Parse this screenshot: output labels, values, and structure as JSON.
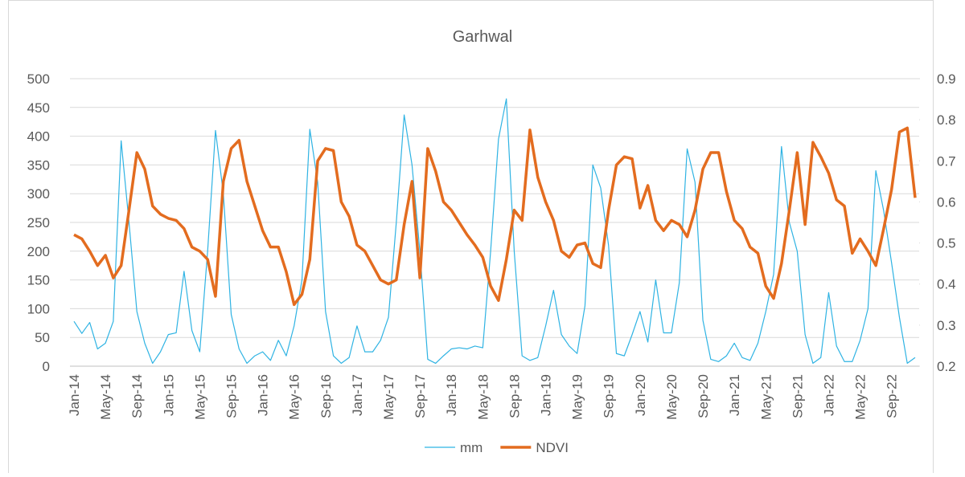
{
  "chart_data": {
    "type": "line",
    "title": "Garhwal",
    "categories": [
      "Jan-14",
      null,
      null,
      null,
      "May-14",
      null,
      null,
      null,
      "Sep-14",
      null,
      null,
      null,
      "Jan-15",
      null,
      null,
      null,
      "May-15",
      null,
      null,
      null,
      "Sep-15",
      null,
      null,
      null,
      "Jan-16",
      null,
      null,
      null,
      "May-16",
      null,
      null,
      null,
      "Sep-16",
      null,
      null,
      null,
      "Jan-17",
      null,
      null,
      null,
      "May-17",
      null,
      null,
      null,
      "Sep-17",
      null,
      null,
      null,
      "Jan-18",
      null,
      null,
      null,
      "May-18",
      null,
      null,
      null,
      "Sep-18",
      null,
      null,
      null,
      "Jan-19",
      null,
      null,
      null,
      "May-19",
      null,
      null,
      null,
      "Sep-19",
      null,
      null,
      null,
      "Jan-20",
      null,
      null,
      null,
      "May-20",
      null,
      null,
      null,
      "Sep-20",
      null,
      null,
      null,
      "Jan-21",
      null,
      null,
      null,
      "May-21",
      null,
      null,
      null,
      "Sep-21",
      null,
      null,
      null,
      "Jan-22",
      null,
      null,
      null,
      "May-22",
      null,
      null,
      null,
      "Sep-22",
      null,
      null,
      null
    ],
    "series": [
      {
        "name": "mm",
        "color": "#2fb3e3",
        "values": [
          78,
          57,
          76,
          30,
          40,
          78,
          392,
          250,
          95,
          40,
          5,
          25,
          55,
          58,
          165,
          62,
          25,
          200,
          410,
          300,
          90,
          30,
          5,
          18,
          25,
          10,
          45,
          18,
          70,
          150,
          412,
          320,
          95,
          18,
          5,
          15,
          70,
          25,
          25,
          45,
          85,
          250,
          437,
          350,
          200,
          12,
          5,
          18,
          30,
          32,
          30,
          35,
          32,
          200,
          395,
          465,
          200,
          18,
          10,
          15,
          70,
          132,
          55,
          35,
          22,
          105,
          350,
          310,
          210,
          22,
          18,
          55,
          95,
          42,
          150,
          58,
          58,
          145,
          378,
          320,
          80,
          12,
          8,
          18,
          40,
          15,
          10,
          40,
          95,
          160,
          382,
          250,
          200,
          55,
          5,
          15,
          128,
          35,
          8,
          8,
          45,
          100,
          340,
          270,
          180,
          85,
          5,
          15
        ]
      },
      {
        "name": "NDVI",
        "color": "#e36c1f",
        "axis": "y2",
        "values": [
          0.52,
          0.51,
          0.48,
          0.445,
          0.47,
          0.415,
          0.445,
          0.58,
          0.72,
          0.68,
          0.59,
          0.57,
          0.56,
          0.555,
          0.535,
          0.49,
          0.48,
          0.46,
          0.37,
          0.65,
          0.73,
          0.75,
          0.65,
          0.59,
          0.53,
          0.49,
          0.49,
          0.43,
          0.35,
          0.375,
          0.46,
          0.7,
          0.73,
          0.725,
          0.6,
          0.565,
          0.495,
          0.48,
          0.445,
          0.41,
          0.4,
          0.41,
          0.545,
          0.65,
          0.415,
          0.73,
          0.675,
          0.6,
          0.58,
          0.55,
          0.52,
          0.495,
          0.465,
          0.395,
          0.36,
          0.46,
          0.58,
          0.555,
          0.775,
          0.66,
          0.6,
          0.555,
          0.48,
          0.465,
          0.495,
          0.5,
          0.45,
          0.44,
          0.58,
          0.69,
          0.71,
          0.705,
          0.585,
          0.64,
          0.555,
          0.53,
          0.555,
          0.545,
          0.515,
          0.58,
          0.68,
          0.72,
          0.72,
          0.625,
          0.555,
          0.535,
          0.49,
          0.475,
          0.395,
          0.365,
          0.45,
          0.58,
          0.72,
          0.545,
          0.745,
          0.71,
          0.67,
          0.605,
          0.59,
          0.475,
          0.51,
          0.48,
          0.445,
          0.535,
          0.63,
          0.77,
          0.78,
          0.61
        ]
      }
    ],
    "ylim": [
      0,
      500
    ],
    "yticks": [
      0,
      50,
      100,
      150,
      200,
      250,
      300,
      350,
      400,
      450,
      500
    ],
    "y2lim": [
      0.2,
      0.9
    ],
    "y2ticks": [
      0.2,
      0.3,
      0.4,
      0.5,
      0.6,
      0.7,
      0.8,
      0.9
    ],
    "grid": true,
    "legend": "bottom"
  }
}
